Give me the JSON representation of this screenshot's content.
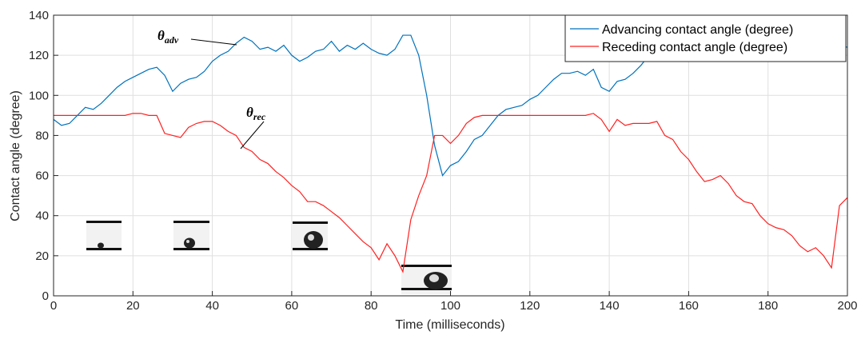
{
  "chart_data": {
    "type": "line",
    "xlabel": "Time (milliseconds)",
    "ylabel": "Contact angle (degree)",
    "x": [
      0,
      2,
      4,
      6,
      8,
      10,
      12,
      14,
      16,
      18,
      20,
      22,
      24,
      26,
      28,
      30,
      32,
      34,
      36,
      38,
      40,
      42,
      44,
      46,
      48,
      50,
      52,
      54,
      56,
      58,
      60,
      62,
      64,
      66,
      68,
      70,
      72,
      74,
      76,
      78,
      80,
      82,
      84,
      86,
      88,
      90,
      92,
      94,
      96,
      98,
      100,
      102,
      104,
      106,
      108,
      110,
      112,
      114,
      116,
      118,
      120,
      122,
      124,
      126,
      128,
      130,
      132,
      134,
      136,
      138,
      140,
      142,
      144,
      146,
      148,
      150,
      152,
      154,
      156,
      158,
      160,
      162,
      164,
      166,
      168,
      170,
      172,
      174,
      176,
      178,
      180,
      182,
      184,
      186,
      188,
      190,
      192,
      194,
      196,
      198,
      200
    ],
    "series": [
      {
        "name": "Advancing contact angle (degree)",
        "color": "#0072bd",
        "values": [
          88,
          85,
          86,
          90,
          94,
          93,
          96,
          100,
          104,
          107,
          109,
          111,
          113,
          114,
          110,
          102,
          106,
          108,
          109,
          112,
          117,
          120,
          122,
          126,
          129,
          127,
          123,
          124,
          122,
          125,
          120,
          117,
          119,
          122,
          123,
          127,
          122,
          125,
          123,
          126,
          123,
          121,
          120,
          123,
          130,
          130,
          120,
          100,
          75,
          60,
          65,
          67,
          72,
          78,
          80,
          85,
          90,
          93,
          94,
          95,
          98,
          100,
          104,
          108,
          111,
          111,
          112,
          110,
          113,
          104,
          102,
          107,
          108,
          111,
          115,
          120,
          122,
          124,
          126,
          125,
          123,
          121,
          120,
          119,
          119,
          118,
          119,
          118,
          120,
          122,
          124,
          125,
          126,
          127,
          126,
          125,
          126,
          127,
          126,
          125,
          124
        ]
      },
      {
        "name": "Receding contact angle (degree)",
        "color": "#ff2020",
        "values": [
          90,
          90,
          90,
          90,
          90,
          90,
          90,
          90,
          90,
          90,
          91,
          91,
          90,
          90,
          81,
          80,
          79,
          84,
          86,
          87,
          87,
          85,
          82,
          80,
          74,
          72,
          68,
          66,
          62,
          59,
          55,
          52,
          47,
          47,
          45,
          42,
          39,
          35,
          31,
          27,
          24,
          18,
          26,
          20,
          12,
          38,
          50,
          60,
          80,
          80,
          76,
          80,
          86,
          89,
          90,
          90,
          90,
          90,
          90,
          90,
          90,
          90,
          90,
          90,
          90,
          90,
          90,
          90,
          91,
          88,
          82,
          88,
          85,
          86,
          86,
          86,
          87,
          80,
          78,
          72,
          68,
          62,
          57,
          58,
          60,
          56,
          50,
          47,
          46,
          40,
          36,
          34,
          33,
          30,
          25,
          22,
          24,
          20,
          14,
          45,
          49
        ]
      }
    ],
    "xlim": [
      0,
      200
    ],
    "xticks": [
      0,
      20,
      40,
      60,
      80,
      100,
      120,
      140,
      160,
      180,
      200
    ],
    "ylim": [
      0,
      140
    ],
    "yticks": [
      0,
      20,
      40,
      60,
      80,
      100,
      120,
      140
    ],
    "grid": true,
    "legend": "upper right",
    "annotations": [
      {
        "text": "θ",
        "sub": "adv"
      },
      {
        "text": "θ",
        "sub": "rec"
      }
    ]
  }
}
